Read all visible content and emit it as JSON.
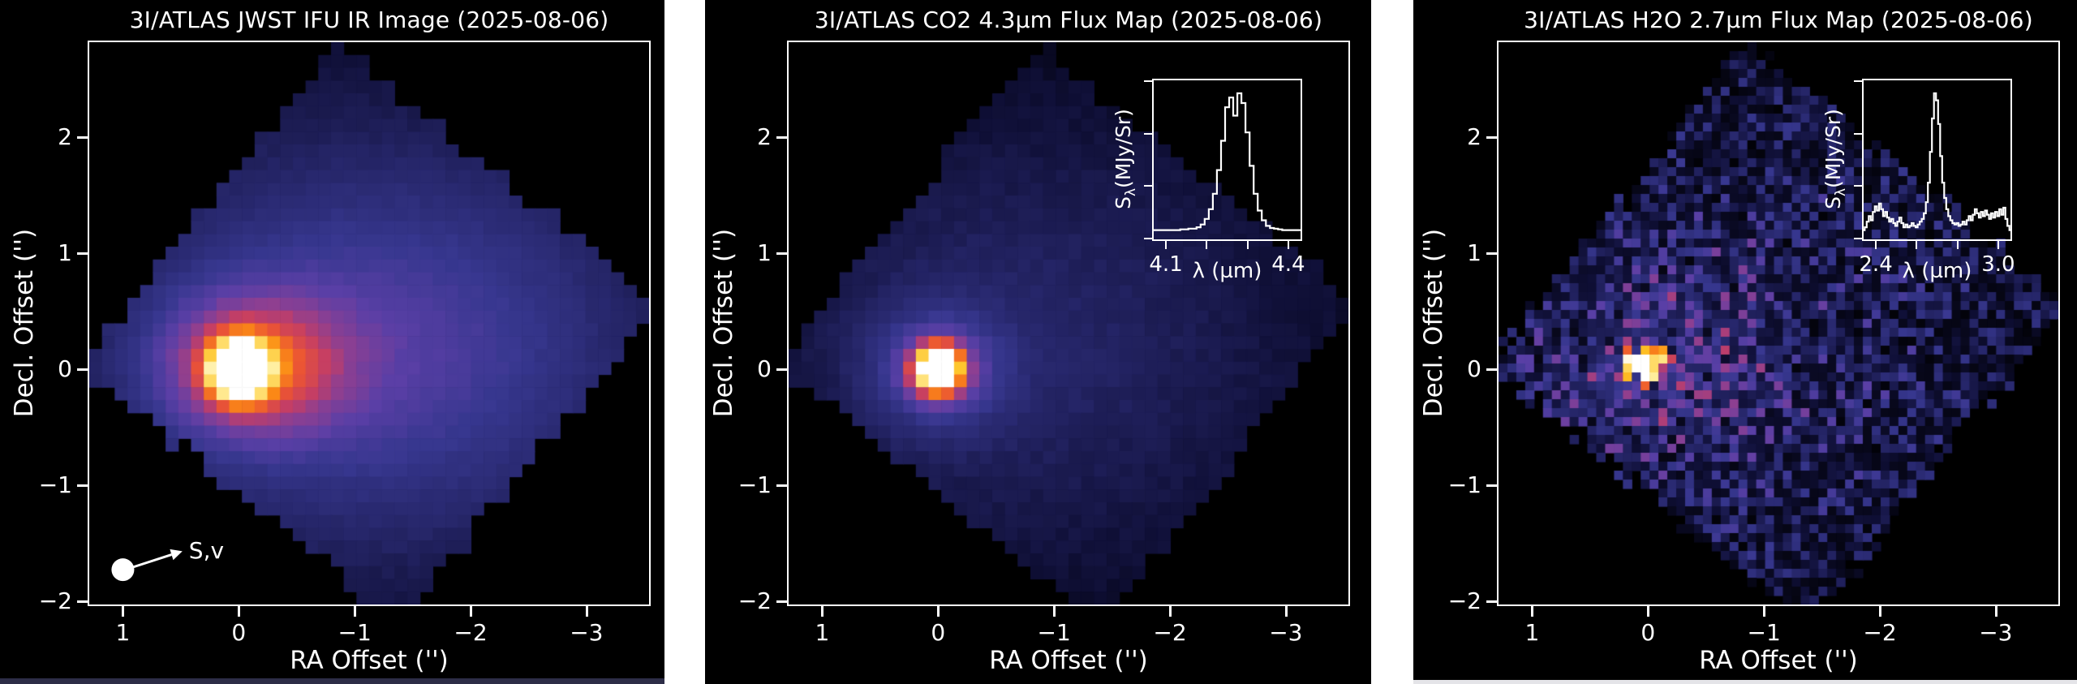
{
  "figure": {
    "background": "#ffffff",
    "panel_background": "#000000",
    "text_color": "#ffffff",
    "spine_color": "#ffffff",
    "seed": 20250806
  },
  "colormap": {
    "name": "cmr-like-blue-magma",
    "stops": [
      [
        0.0,
        "#000000"
      ],
      [
        0.08,
        "#0e0e33"
      ],
      [
        0.18,
        "#242465"
      ],
      [
        0.3,
        "#37378f"
      ],
      [
        0.4,
        "#5a3fa6"
      ],
      [
        0.5,
        "#8c3f92"
      ],
      [
        0.58,
        "#c53e64"
      ],
      [
        0.66,
        "#ea5335"
      ],
      [
        0.75,
        "#fb8716"
      ],
      [
        0.84,
        "#fec325"
      ],
      [
        0.93,
        "#ffef9f"
      ],
      [
        1.0,
        "#ffffff"
      ]
    ]
  },
  "chart_data": [
    {
      "type": "heatmap",
      "title": "3I/ATLAS JWST IFU IR Image (2025-08-06)",
      "xlabel": "RA Offset ('')",
      "ylabel": "Decl. Offset ('')",
      "xlim": [
        1.29,
        -3.54
      ],
      "ylim": [
        -2.03,
        2.82
      ],
      "xticks": [
        1,
        0,
        -1,
        -2,
        -3
      ],
      "xtick_labels": [
        "1",
        "0",
        "−1",
        "−2",
        "−3"
      ],
      "yticks": [
        2,
        1,
        0,
        -1,
        -2
      ],
      "ytick_labels": [
        "2",
        "1",
        "0",
        "−1",
        "−2"
      ],
      "grid": [
        44,
        44
      ],
      "peak": {
        "ra": 0.0,
        "dec": 0.0
      },
      "footprint": {
        "shape": "rotated-square",
        "center": [
          -1.12,
          0.3
        ],
        "half_diagonal": 2.51,
        "rotation_deg": -6,
        "edge_jitter": 0.05
      },
      "sources": [
        {
          "x": 0.0,
          "y": 0.0,
          "sx": 0.17,
          "sy": 0.17,
          "amp": 0.95
        },
        {
          "x": -0.1,
          "y": 0.02,
          "sx": 0.55,
          "sy": 0.42,
          "amp": 0.42
        },
        {
          "x": -1.2,
          "y": 0.15,
          "sx": 1.5,
          "sy": 1.05,
          "amp": 0.22
        },
        {
          "x": -1.1,
          "y": 0.3,
          "sx": 2.5,
          "sy": 2.1,
          "amp": 0.16
        }
      ],
      "noise": 0.012,
      "annotation": {
        "label": "S,v",
        "marker": {
          "ra": 1.0,
          "dec": -1.73
        },
        "arrow_to": {
          "ra": 0.58,
          "dec": -1.6
        }
      }
    },
    {
      "type": "heatmap",
      "title": "3I/ATLAS CO2 4.3µm Flux Map (2025-08-06)",
      "xlabel": "RA Offset ('')",
      "ylabel": "Decl. Offset ('')",
      "xlim": [
        1.29,
        -3.54
      ],
      "ylim": [
        -2.03,
        2.82
      ],
      "xticks": [
        1,
        0,
        -1,
        -2,
        -3
      ],
      "xtick_labels": [
        "1",
        "0",
        "−1",
        "−2",
        "−3"
      ],
      "yticks": [
        2,
        1,
        0,
        -1,
        -2
      ],
      "ytick_labels": [
        "2",
        "1",
        "0",
        "−1",
        "−2"
      ],
      "grid": [
        44,
        44
      ],
      "peak": {
        "ra": 0.0,
        "dec": 0.0
      },
      "footprint": {
        "shape": "rotated-square",
        "center": [
          -1.12,
          0.3
        ],
        "half_diagonal": 2.51,
        "rotation_deg": -6,
        "edge_jitter": 0.05
      },
      "sources": [
        {
          "x": 0.0,
          "y": 0.0,
          "sx": 0.14,
          "sy": 0.14,
          "amp": 1.0
        },
        {
          "x": 0.0,
          "y": 0.0,
          "sx": 0.38,
          "sy": 0.33,
          "amp": 0.3
        },
        {
          "x": -0.5,
          "y": 0.2,
          "sx": 1.5,
          "sy": 1.2,
          "amp": 0.09
        },
        {
          "x": -1.1,
          "y": 0.3,
          "sx": 2.6,
          "sy": 2.2,
          "amp": 0.1
        }
      ],
      "noise": 0.015,
      "inset": {
        "type": "line",
        "ylabel_parts": {
          "main": "S",
          "sub": "λ",
          "rest": "(MJy/Sr)"
        },
        "xlabel": "λ (µm)",
        "xlim": [
          4.07,
          4.43
        ],
        "xticks": [
          4.1,
          4.2,
          4.3,
          4.4
        ],
        "xtick_labels": [
          "4.1",
          "",
          "",
          "4.4"
        ],
        "series": {
          "x_start": 4.07,
          "x_step": 0.01,
          "y": [
            0.02,
            0.02,
            0.02,
            0.02,
            0.02,
            0.02,
            0.02,
            0.025,
            0.025,
            0.03,
            0.03,
            0.04,
            0.06,
            0.1,
            0.17,
            0.28,
            0.45,
            0.66,
            0.9,
            0.97,
            0.84,
            1.0,
            0.93,
            0.72,
            0.48,
            0.28,
            0.16,
            0.09,
            0.05,
            0.035,
            0.03,
            0.025,
            0.02,
            0.02,
            0.02,
            0.02,
            0.02
          ]
        }
      }
    },
    {
      "type": "heatmap",
      "title": "3I/ATLAS H2O 2.7µm Flux Map (2025-08-06)",
      "xlabel": "RA Offset ('')",
      "ylabel": "Decl. Offset ('')",
      "xlim": [
        1.29,
        -3.54
      ],
      "ylim": [
        -2.03,
        2.82
      ],
      "xticks": [
        1,
        0,
        -1,
        -2,
        -3
      ],
      "xtick_labels": [
        "1",
        "0",
        "−1",
        "−2",
        "−3"
      ],
      "yticks": [
        2,
        1,
        0,
        -1,
        -2
      ],
      "ytick_labels": [
        "2",
        "1",
        "0",
        "−1",
        "−2"
      ],
      "grid": [
        63,
        63
      ],
      "peak": {
        "ra": 0.05,
        "dec": 0.05
      },
      "footprint": {
        "shape": "rotated-square",
        "center": [
          -1.12,
          0.3
        ],
        "half_diagonal": 2.51,
        "rotation_deg": -6,
        "edge_jitter": 0.1
      },
      "sources": [
        {
          "x": 0.05,
          "y": 0.05,
          "sx": 0.13,
          "sy": 0.1,
          "amp": 1.0
        },
        {
          "x": 0.0,
          "y": 0.0,
          "sx": 0.6,
          "sy": 0.5,
          "amp": 0.14
        }
      ],
      "noise": 0,
      "speckle": {
        "env_center": [
          -0.6,
          0.2
        ],
        "env_sx": 1.8,
        "env_sy": 1.5,
        "floor": 0.3,
        "base": 0.05,
        "amp": 0.45,
        "dark_frac": 0.12
      },
      "inset": {
        "type": "line",
        "ylabel_parts": {
          "main": "S",
          "sub": "λ",
          "rest": "(MJy/Sr)"
        },
        "xlabel": "λ (µm)",
        "xlim": [
          2.34,
          3.06
        ],
        "xticks": [
          2.4,
          2.6,
          2.8,
          3.0
        ],
        "xtick_labels": [
          "2.4",
          "",
          "",
          "3.0"
        ],
        "series": {
          "x_start": 2.34,
          "x_step": 0.01,
          "y": [
            0.02,
            0.04,
            0.08,
            0.12,
            0.09,
            0.15,
            0.19,
            0.16,
            0.21,
            0.17,
            0.12,
            0.15,
            0.11,
            0.08,
            0.1,
            0.07,
            0.05,
            0.08,
            0.11,
            0.07,
            0.04,
            0.06,
            0.04,
            0.05,
            0.07,
            0.05,
            0.04,
            0.06,
            0.08,
            0.1,
            0.14,
            0.22,
            0.36,
            0.58,
            0.82,
            1.0,
            0.95,
            0.78,
            0.55,
            0.36,
            0.25,
            0.17,
            0.12,
            0.09,
            0.07,
            0.06,
            0.07,
            0.05,
            0.06,
            0.08,
            0.06,
            0.09,
            0.12,
            0.09,
            0.13,
            0.17,
            0.14,
            0.11,
            0.15,
            0.12,
            0.16,
            0.13,
            0.1,
            0.14,
            0.11,
            0.15,
            0.12,
            0.17,
            0.13,
            0.18,
            0.1,
            0.05,
            0.02
          ]
        }
      }
    }
  ],
  "decorations": {
    "bottom_strips": [
      {
        "color": "#2d2d47"
      },
      {
        "color": "#e4e4e8"
      }
    ]
  }
}
